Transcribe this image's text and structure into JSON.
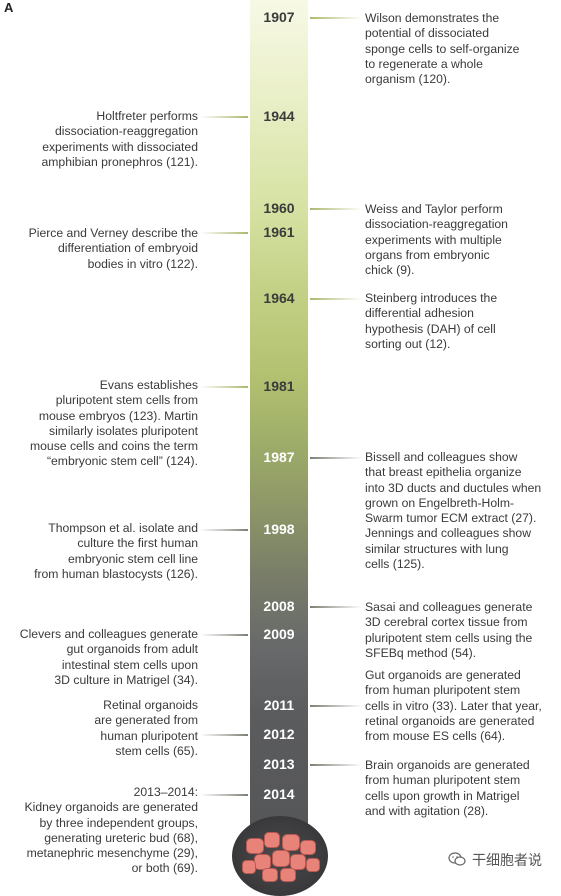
{
  "panel_label": "A",
  "years": [
    {
      "id": "y1907",
      "label": "1907"
    },
    {
      "id": "y1944",
      "label": "1944"
    },
    {
      "id": "y1960",
      "label": "1960"
    },
    {
      "id": "y1961",
      "label": "1961"
    },
    {
      "id": "y1964",
      "label": "1964"
    },
    {
      "id": "y1981",
      "label": "1981"
    },
    {
      "id": "y1987",
      "label": "1987"
    },
    {
      "id": "y1998",
      "label": "1998"
    },
    {
      "id": "y2008",
      "label": "2008"
    },
    {
      "id": "y2009",
      "label": "2009"
    },
    {
      "id": "y2011",
      "label": "2011"
    },
    {
      "id": "y2012",
      "label": "2012"
    },
    {
      "id": "y2013",
      "label": "2013"
    },
    {
      "id": "y2014",
      "label": "2014"
    }
  ],
  "events_left": {
    "e1944": "Holtfreter performs\ndissociation-reaggregation\nexperiments with dissociated\namphibian pronephros (121).",
    "e1961": "Pierce and Verney describe the\ndifferentiation of embryoid\nbodies in vitro (122).",
    "e1981": "Evans establishes\npluripotent stem cells from\nmouse embryos (123). Martin\nsimilarly isolates pluripotent\nmouse cells and coins the term\n“embryonic stem cell” (124).",
    "e1998": "Thompson et al. isolate and\nculture the first human\nembryonic stem cell line\nfrom human blastocysts (126).",
    "e2009": "Clevers and colleagues generate\ngut organoids from adult\nintestinal stem cells upon\n3D culture in Matrigel (34).",
    "e2012": "Retinal organoids\nare generated from\nhuman pluripotent\nstem cells (65).",
    "e2014": "2013–2014:\nKidney organoids are generated\nby three independent groups,\ngenerating ureteric bud (68),\nmetanephric mesenchyme (29),\nor both (69)."
  },
  "events_right": {
    "e1907": "Wilson demonstrates the\npotential of dissociated\nsponge cells to self-organize\nto regenerate a whole\norganism (120).",
    "e1960": "Weiss and Taylor perform\ndissociation-reaggregation\nexperiments with multiple\norgans from embryonic\nchick (9).",
    "e1964": "Steinberg introduces the\ndifferential adhesion\nhypothesis (DAH) of cell\nsorting out (12).",
    "e1987": "Bissell and colleagues show\nthat breast epithelia organize\ninto 3D ducts and ductules when\ngrown on Engelbreth-Holm-\nSwarm tumor ECM extract (27).\nJennings and colleagues show\nsimilar structures with lung\ncells (125).",
    "e2008": "Sasai and colleagues generate\n3D cerebral cortex tissue from\npluripotent stem cells using the\nSFEBq method (54).",
    "e2011": "Gut organoids are generated\nfrom human pluripotent stem\ncells in vitro (33). Later that year,\nretinal organoids are generated\nfrom mouse ES cells (64).",
    "e2013": "Brain organoids are generated\nfrom human pluripotent stem\ncells upon growth in Matrigel\nand with agitation (28)."
  },
  "watermark": "干细胞者说",
  "icons": {
    "watermark_icon": "wechat-icon",
    "dish_icon": "organoid-dish-icon"
  },
  "colors": {
    "bar_top": "#f7f9e6",
    "bar_mid": "#b3c271",
    "bar_bottom": "#555658",
    "cell_fill": "#e8837a"
  }
}
